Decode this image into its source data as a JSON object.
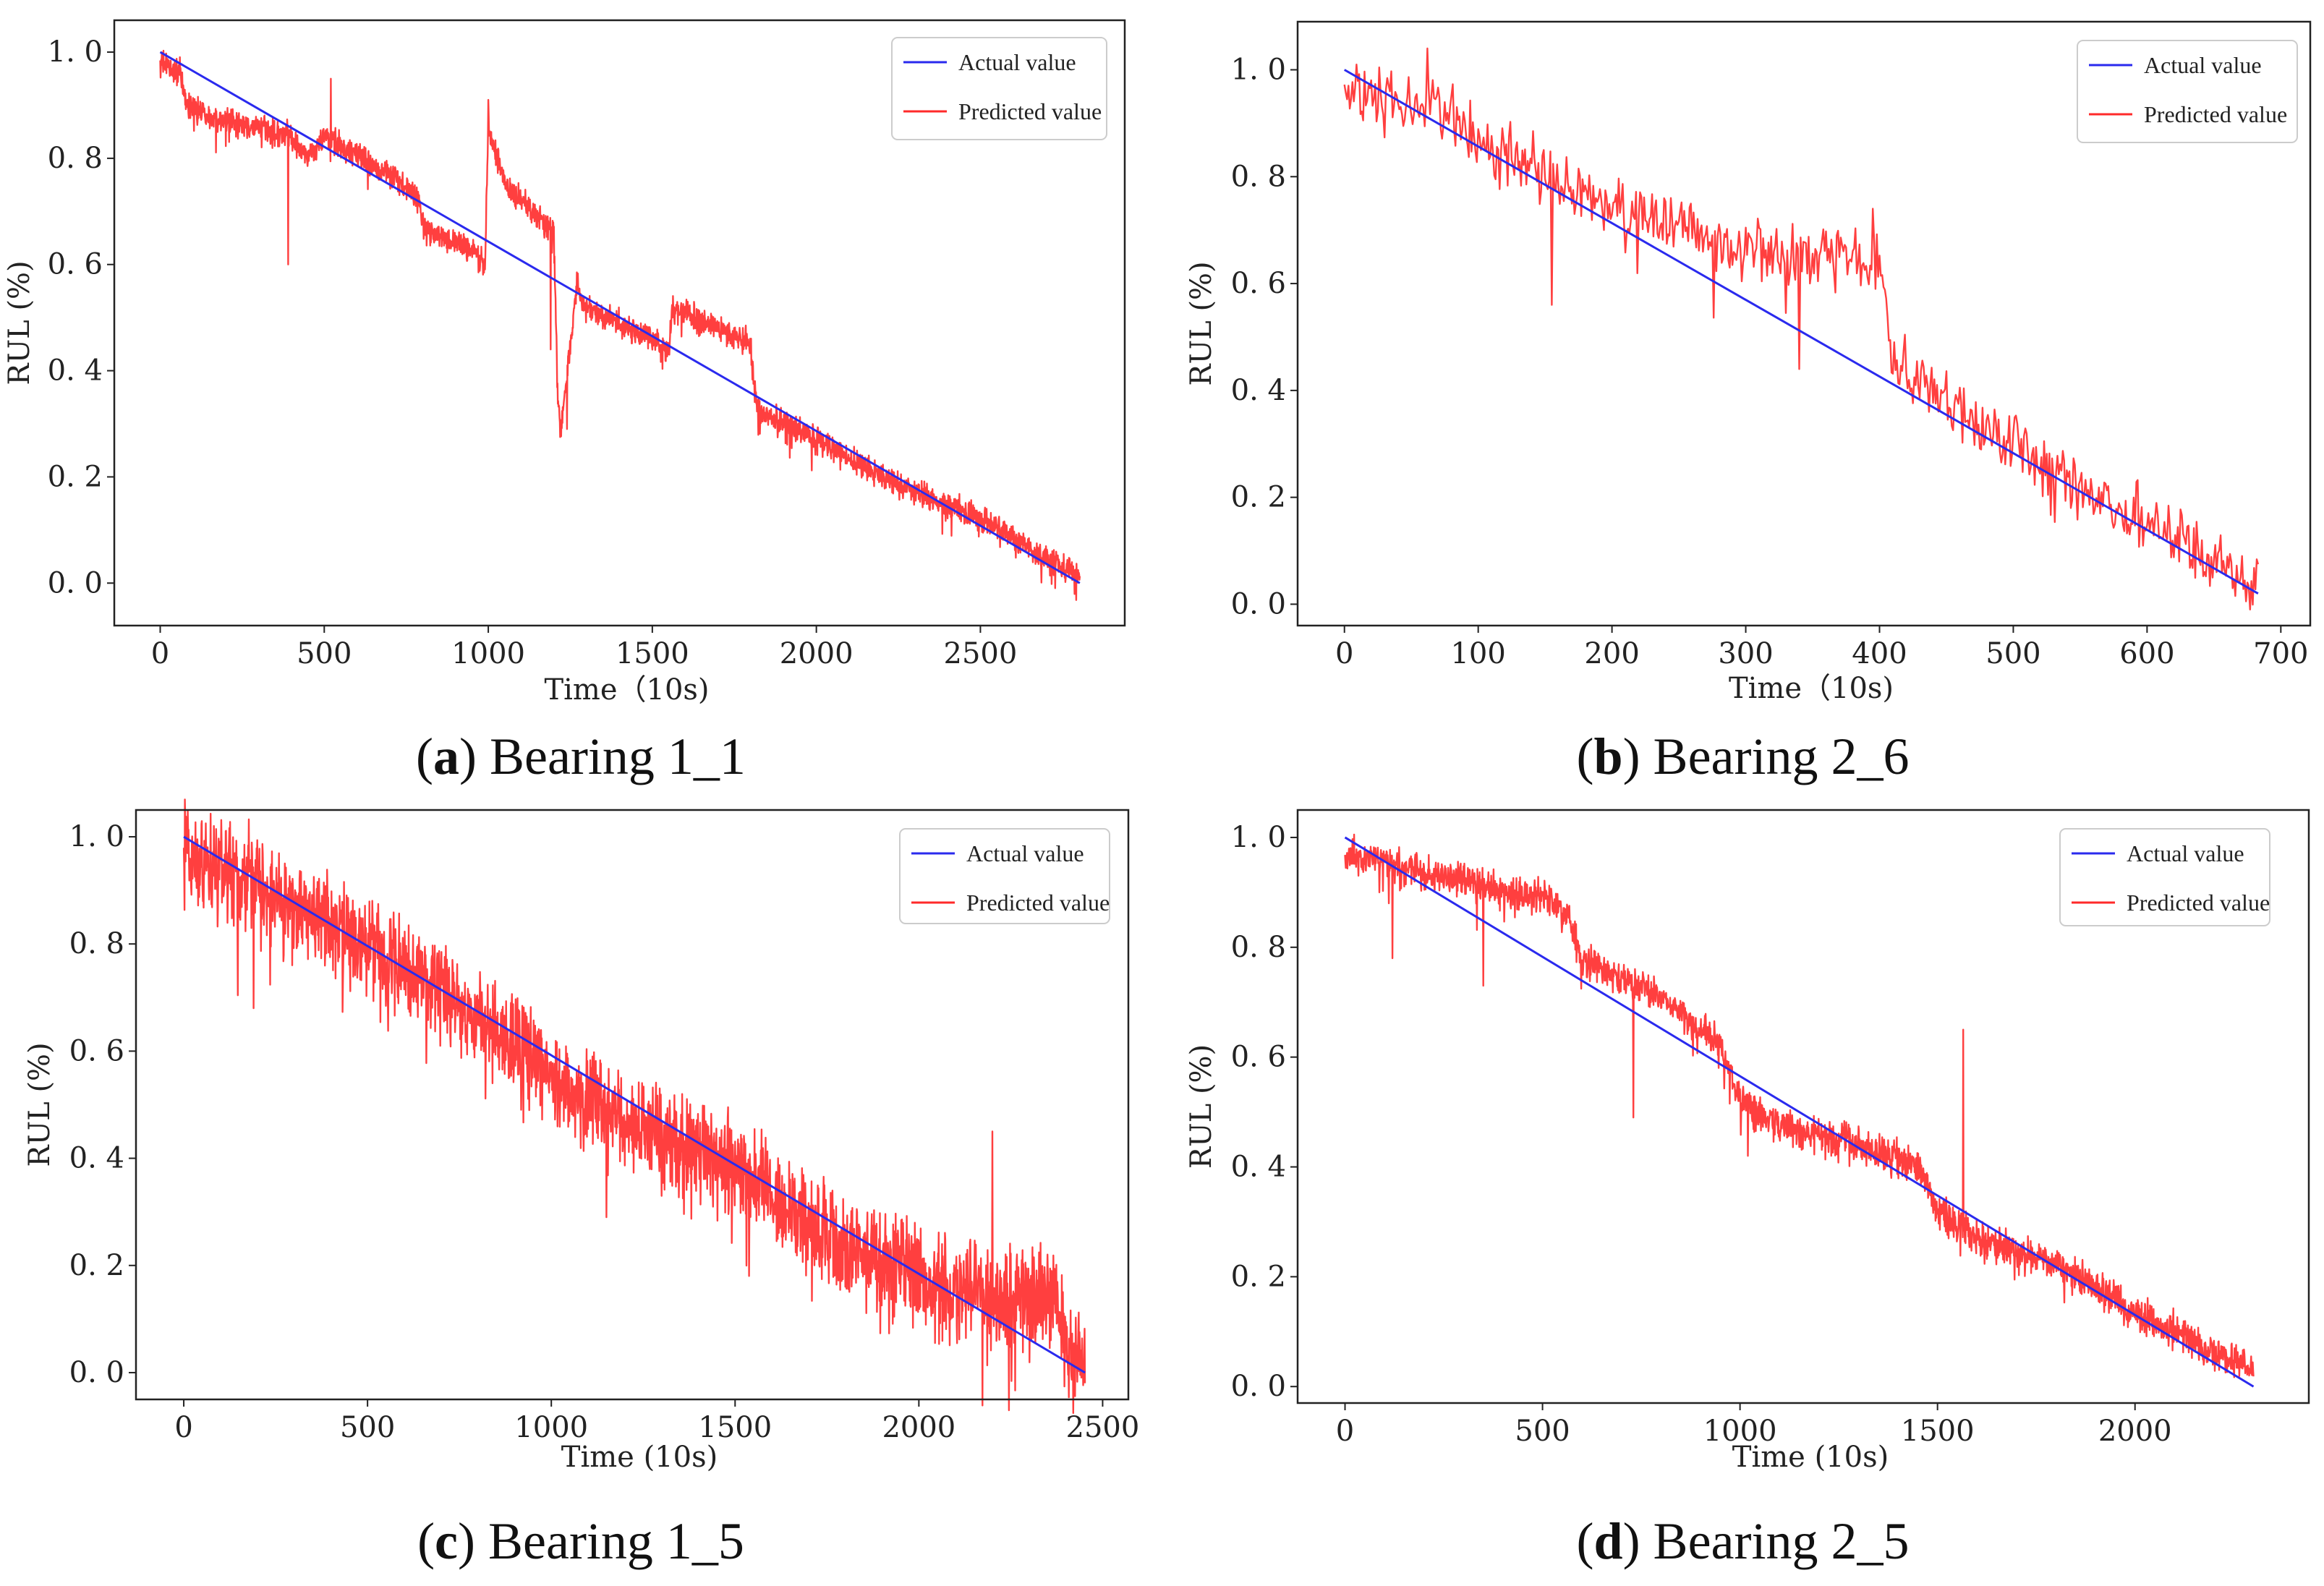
{
  "chart_data": [
    {
      "type": "line",
      "id": "a",
      "caption_letter": "a",
      "caption_text": "Bearing 1_1",
      "xlabel": "Time（10s)",
      "ylabel": "RUL (%)",
      "xlim": [
        -140,
        2940
      ],
      "ylim": [
        -0.08,
        1.06
      ],
      "xticks": [
        0,
        500,
        1000,
        1500,
        2000,
        2500
      ],
      "yticks": [
        0.0,
        0.2,
        0.4,
        0.6,
        0.8,
        1.0
      ],
      "ytick_labels": [
        "0. 0",
        "0. 2",
        "0. 4",
        "0. 6",
        "0. 8",
        "1. 0"
      ],
      "legend": [
        "Actual value",
        "Predicted value"
      ],
      "colors": {
        "actual": "#2a2aee",
        "predicted": "#ff2a2a"
      },
      "n_points": 2803,
      "noise": 0.022,
      "actual": {
        "x": [
          0,
          2803
        ],
        "y": [
          1.0,
          0.0
        ]
      },
      "predicted_trend": {
        "x": [
          0,
          60,
          80,
          200,
          400,
          450,
          500,
          700,
          790,
          800,
          950,
          990,
          1000,
          1050,
          1150,
          1200,
          1210,
          1220,
          1230,
          1260,
          1270,
          1300,
          1550,
          1560,
          1800,
          1820,
          2000,
          2200,
          2500,
          2803
        ],
        "y": [
          0.98,
          0.96,
          0.9,
          0.87,
          0.84,
          0.8,
          0.84,
          0.77,
          0.72,
          0.67,
          0.63,
          0.6,
          0.86,
          0.75,
          0.69,
          0.66,
          0.38,
          0.28,
          0.34,
          0.5,
          0.56,
          0.52,
          0.44,
          0.52,
          0.45,
          0.33,
          0.27,
          0.2,
          0.12,
          0.01
        ]
      },
      "spikes": [
        {
          "x": 390,
          "y": 0.6
        },
        {
          "x": 520,
          "y": 0.95
        },
        {
          "x": 1000,
          "y": 0.91
        },
        {
          "x": 1190,
          "y": 0.44
        },
        {
          "x": 1240,
          "y": 0.29
        }
      ]
    },
    {
      "type": "line",
      "id": "b",
      "caption_letter": "b",
      "caption_text": "Bearing 2_6",
      "xlabel": "Time（10s)",
      "ylabel": "RUL (%)",
      "xlim": [
        -35,
        722
      ],
      "ylim": [
        -0.04,
        1.09
      ],
      "xticks": [
        0,
        100,
        200,
        300,
        400,
        500,
        600,
        700
      ],
      "yticks": [
        0.0,
        0.2,
        0.4,
        0.6,
        0.8,
        1.0
      ],
      "ytick_labels": [
        "0. 0",
        "0. 2",
        "0. 4",
        "0. 6",
        "0. 8",
        "1. 0"
      ],
      "legend": [
        "Actual value",
        "Predicted value"
      ],
      "colors": {
        "actual": "#2a2aee",
        "predicted": "#ff2a2a"
      },
      "n_points": 683,
      "noise": 0.055,
      "actual": {
        "x": [
          0,
          683
        ],
        "y": [
          1.0,
          0.02
        ]
      },
      "predicted_trend": {
        "x": [
          0,
          50,
          80,
          100,
          200,
          300,
          400,
          405,
          410,
          500,
          600,
          683
        ],
        "y": [
          0.95,
          0.93,
          0.92,
          0.86,
          0.75,
          0.66,
          0.64,
          0.6,
          0.44,
          0.3,
          0.15,
          0.04
        ]
      },
      "spikes": [
        {
          "x": 62,
          "y": 1.04
        },
        {
          "x": 155,
          "y": 0.56
        },
        {
          "x": 340,
          "y": 0.44
        },
        {
          "x": 395,
          "y": 0.74
        }
      ]
    },
    {
      "type": "line",
      "id": "c",
      "caption_letter": "c",
      "caption_text": "Bearing 1_5",
      "xlabel": "Time (10s)",
      "ylabel": "RUL (%)",
      "xlim": [
        -130,
        2570
      ],
      "ylim": [
        -0.05,
        1.05
      ],
      "xticks": [
        0,
        500,
        1000,
        1500,
        2000,
        2500
      ],
      "yticks": [
        0.0,
        0.2,
        0.4,
        0.6,
        0.8,
        1.0
      ],
      "ytick_labels": [
        "0. 0",
        "0. 2",
        "0. 4",
        "0. 6",
        "0. 8",
        "1. 0"
      ],
      "legend": [
        "Actual value",
        "Predicted value"
      ],
      "colors": {
        "actual": "#2a2aee",
        "predicted": "#ff2a2a"
      },
      "n_points": 2452,
      "noise": 0.08,
      "actual": {
        "x": [
          0,
          2452
        ],
        "y": [
          1.0,
          0.0
        ]
      },
      "predicted_trend": {
        "x": [
          0,
          500,
          900,
          1100,
          1500,
          1800,
          2100,
          2370,
          2400,
          2452
        ],
        "y": [
          0.97,
          0.8,
          0.62,
          0.5,
          0.38,
          0.24,
          0.15,
          0.14,
          0.05,
          0.01
        ]
      },
      "spikes": [
        {
          "x": 190,
          "y": 0.68
        },
        {
          "x": 1150,
          "y": 0.29
        },
        {
          "x": 2200,
          "y": 0.45
        }
      ]
    },
    {
      "type": "line",
      "id": "d",
      "caption_letter": "d",
      "caption_text": "Bearing 2_5",
      "xlabel": "Time (10s)",
      "ylabel": "RUL (%)",
      "xlim": [
        -120,
        2440
      ],
      "ylim": [
        -0.03,
        1.05
      ],
      "xticks": [
        0,
        500,
        1000,
        1500,
        2000
      ],
      "yticks": [
        0.0,
        0.2,
        0.4,
        0.6,
        0.8,
        1.0
      ],
      "ytick_labels": [
        "0. 0",
        "0. 2",
        "0. 4",
        "0. 6",
        "0. 8",
        "1. 0"
      ],
      "legend": [
        "Actual value",
        "Predicted value"
      ],
      "colors": {
        "actual": "#2a2aee",
        "predicted": "#ff2a2a"
      },
      "n_points": 2300,
      "noise": 0.028,
      "actual": {
        "x": [
          0,
          2300
        ],
        "y": [
          1.0,
          0.0
        ]
      },
      "predicted_trend": {
        "x": [
          0,
          300,
          500,
          560,
          600,
          800,
          950,
          1000,
          1100,
          1300,
          1450,
          1500,
          1600,
          1800,
          2000,
          2200,
          2300
        ],
        "y": [
          0.97,
          0.92,
          0.89,
          0.86,
          0.78,
          0.71,
          0.62,
          0.52,
          0.48,
          0.44,
          0.4,
          0.32,
          0.27,
          0.22,
          0.14,
          0.06,
          0.03
        ]
      },
      "spikes": [
        {
          "x": 120,
          "y": 0.78
        },
        {
          "x": 350,
          "y": 0.73
        },
        {
          "x": 730,
          "y": 0.49
        },
        {
          "x": 1020,
          "y": 0.42
        },
        {
          "x": 1565,
          "y": 0.65
        }
      ]
    }
  ]
}
